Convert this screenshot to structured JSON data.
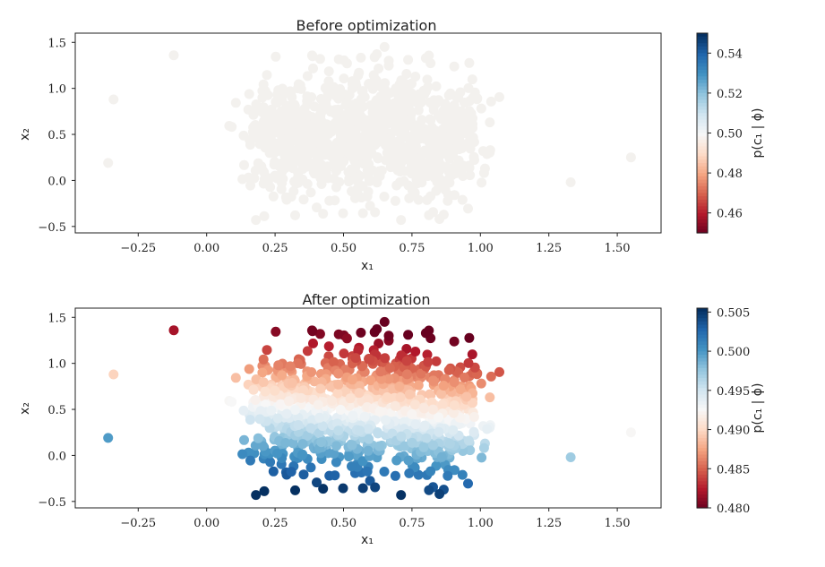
{
  "chart_data": [
    {
      "type": "scatter",
      "title": "Before optimization",
      "xlabel": "x₁",
      "ylabel": "x₂",
      "xlim": [
        -0.48,
        1.66
      ],
      "ylim": [
        -0.57,
        1.6
      ],
      "xticks": [
        -0.25,
        0.0,
        0.25,
        0.5,
        0.75,
        1.0,
        1.25,
        1.5
      ],
      "xtick_labels": [
        "−0.25",
        "0.00",
        "0.25",
        "0.50",
        "0.75",
        "1.00",
        "1.25",
        "1.50"
      ],
      "yticks": [
        -0.5,
        0.0,
        0.5,
        1.0,
        1.5
      ],
      "ytick_labels": [
        "−0.5",
        "0.0",
        "0.5",
        "1.0",
        "1.5"
      ],
      "grid": false,
      "colormap": "RdBu",
      "point_color": "#f3f1ee",
      "colorbar": {
        "label": "p(c₁ | ϕ)",
        "range": [
          0.45,
          0.55
        ],
        "ticks": [
          0.46,
          0.48,
          0.5,
          0.52,
          0.54
        ],
        "tick_labels": [
          "0.46",
          "0.48",
          "0.50",
          "0.52",
          "0.54"
        ]
      },
      "approx_points": 1000,
      "x_extent": [
        -0.38,
        1.55
      ],
      "y_extent": [
        -0.44,
        1.45
      ]
    },
    {
      "type": "scatter",
      "title": "After optimization",
      "xlabel": "x₁",
      "ylabel": "x₂",
      "xlim": [
        -0.48,
        1.66
      ],
      "ylim": [
        -0.57,
        1.6
      ],
      "xticks": [
        -0.25,
        0.0,
        0.25,
        0.5,
        0.75,
        1.0,
        1.25,
        1.5
      ],
      "xtick_labels": [
        "−0.25",
        "0.00",
        "0.25",
        "0.50",
        "0.75",
        "1.00",
        "1.25",
        "1.50"
      ],
      "yticks": [
        -0.5,
        0.0,
        0.5,
        1.0,
        1.5
      ],
      "ytick_labels": [
        "−0.5",
        "0.0",
        "0.5",
        "1.0",
        "1.5"
      ],
      "grid": false,
      "colormap": "RdBu",
      "color_gradient": "red at high x₂ and high x₁, blue at low x₂",
      "colorbar": {
        "label": "p(c₁ | ϕ)",
        "range": [
          0.48,
          0.5055
        ],
        "ticks": [
          0.48,
          0.485,
          0.49,
          0.495,
          0.5,
          0.505
        ],
        "tick_labels": [
          "0.480",
          "0.485",
          "0.490",
          "0.495",
          "0.500",
          "0.505"
        ]
      },
      "approx_points": 1000,
      "x_extent": [
        -0.38,
        1.55
      ],
      "y_extent": [
        -0.44,
        1.45
      ]
    }
  ]
}
